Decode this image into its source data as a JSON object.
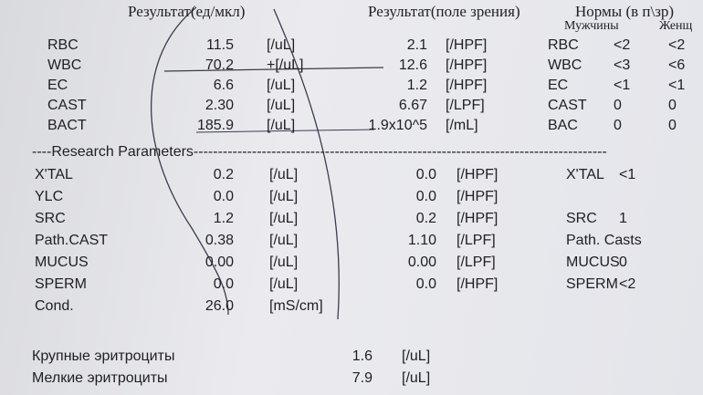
{
  "header": {
    "result_units": "Результат(ед/мкл)",
    "result_field": "Результат(поле зрения)",
    "norms": "Нормы (в п\\зр)",
    "male": "Мужчины",
    "female": "Женщ"
  },
  "main_rows": [
    [
      "RBC",
      "11.5",
      "[/uL]",
      "2.1",
      "[/HPF]",
      "RBC",
      "<2",
      "<2"
    ],
    [
      "WBC",
      "70.2",
      "+[/uL]",
      "12.6",
      "[/HPF]",
      "WBC",
      "<3",
      "<6"
    ],
    [
      "EC",
      "6.6",
      "[/uL]",
      "1.2",
      "[/HPF]",
      "EC",
      "<1",
      "<1"
    ],
    [
      "CAST",
      "2.30",
      "[/uL]",
      "6.67",
      "[/LPF]",
      "CAST",
      "0",
      "0"
    ],
    [
      "BACT",
      "185.9",
      "[/uL]",
      "1.9x10^5",
      "[/mL]",
      "BAC",
      "0",
      "0"
    ]
  ],
  "section_title": "----Research Parameters-------------------------------------------------------------------------------------",
  "research_rows": [
    [
      "X'TAL",
      "0.2",
      "[/uL]",
      "0.0",
      "[/HPF]",
      "X'TAL",
      "<1"
    ],
    [
      "YLC",
      "0.0",
      "[/uL]",
      "0.0",
      "[/HPF]"
    ],
    [
      "SRC",
      "1.2",
      "[/uL]",
      "0.2",
      "[/HPF]",
      "SRC",
      "1"
    ],
    [
      "Path.CAST",
      "0.38",
      "[/uL]",
      "1.10",
      "[/LPF]",
      "Path. Casts"
    ],
    [
      "MUCUS",
      "0.00",
      "[/uL]",
      "0.00",
      "[/LPF]",
      "MUCUS",
      "0"
    ],
    [
      "SPERM",
      "0.0",
      "[/uL]",
      "0.0",
      "[/HPF]",
      "SPERM",
      "<2"
    ],
    [
      "Cond.",
      "26.0",
      "[mS/cm]"
    ]
  ],
  "extra_rows": [
    [
      "Крупные эритроциты",
      "1.6",
      "[/uL]"
    ],
    [
      "Мелкие эритроциты",
      "7.9",
      "[/uL]"
    ]
  ]
}
